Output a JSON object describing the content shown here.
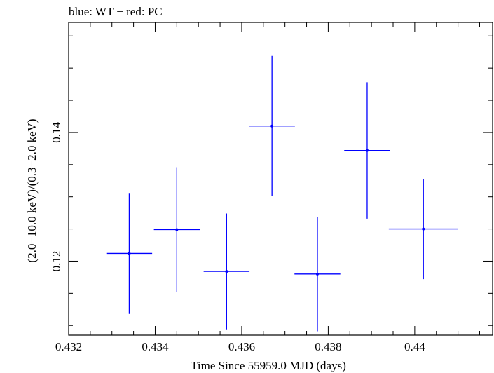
{
  "chart_data": {
    "type": "scatter",
    "title": "blue: WT − red: PC",
    "xlabel": "Time Since 55959.0 MJD (days)",
    "ylabel": "(2.0−10.0 keV)/(0.3−2.0 keV)",
    "xlim": [
      0.432,
      0.4418
    ],
    "ylim": [
      0.1085,
      0.1571
    ],
    "x_ticks": [
      0.432,
      0.434,
      0.436,
      0.438,
      0.44
    ],
    "x_tick_labels": [
      "0.432",
      "0.434",
      "0.436",
      "0.438",
      "0.44"
    ],
    "y_ticks": [
      0.12,
      0.14
    ],
    "y_tick_labels": [
      "0.12",
      "0.14"
    ],
    "grid": false,
    "series": [
      {
        "name": "WT",
        "color": "#0000ff",
        "points": [
          {
            "x": 0.4334,
            "y": 0.1212,
            "xerr": 0.00053,
            "yerr": 0.0094
          },
          {
            "x": 0.4345,
            "y": 0.1249,
            "xerr": 0.00053,
            "yerr": 0.0097
          },
          {
            "x": 0.43565,
            "y": 0.1184,
            "xerr": 0.00053,
            "yerr": 0.009
          },
          {
            "x": 0.4367,
            "y": 0.141,
            "xerr": 0.00053,
            "yerr": 0.0109
          },
          {
            "x": 0.43775,
            "y": 0.118,
            "xerr": 0.00053,
            "yerr": 0.0089
          },
          {
            "x": 0.4389,
            "y": 0.1372,
            "xerr": 0.00053,
            "yerr": 0.0106
          },
          {
            "x": 0.4402,
            "y": 0.125,
            "xerr": 0.0008,
            "yerr": 0.0078
          }
        ]
      }
    ]
  }
}
